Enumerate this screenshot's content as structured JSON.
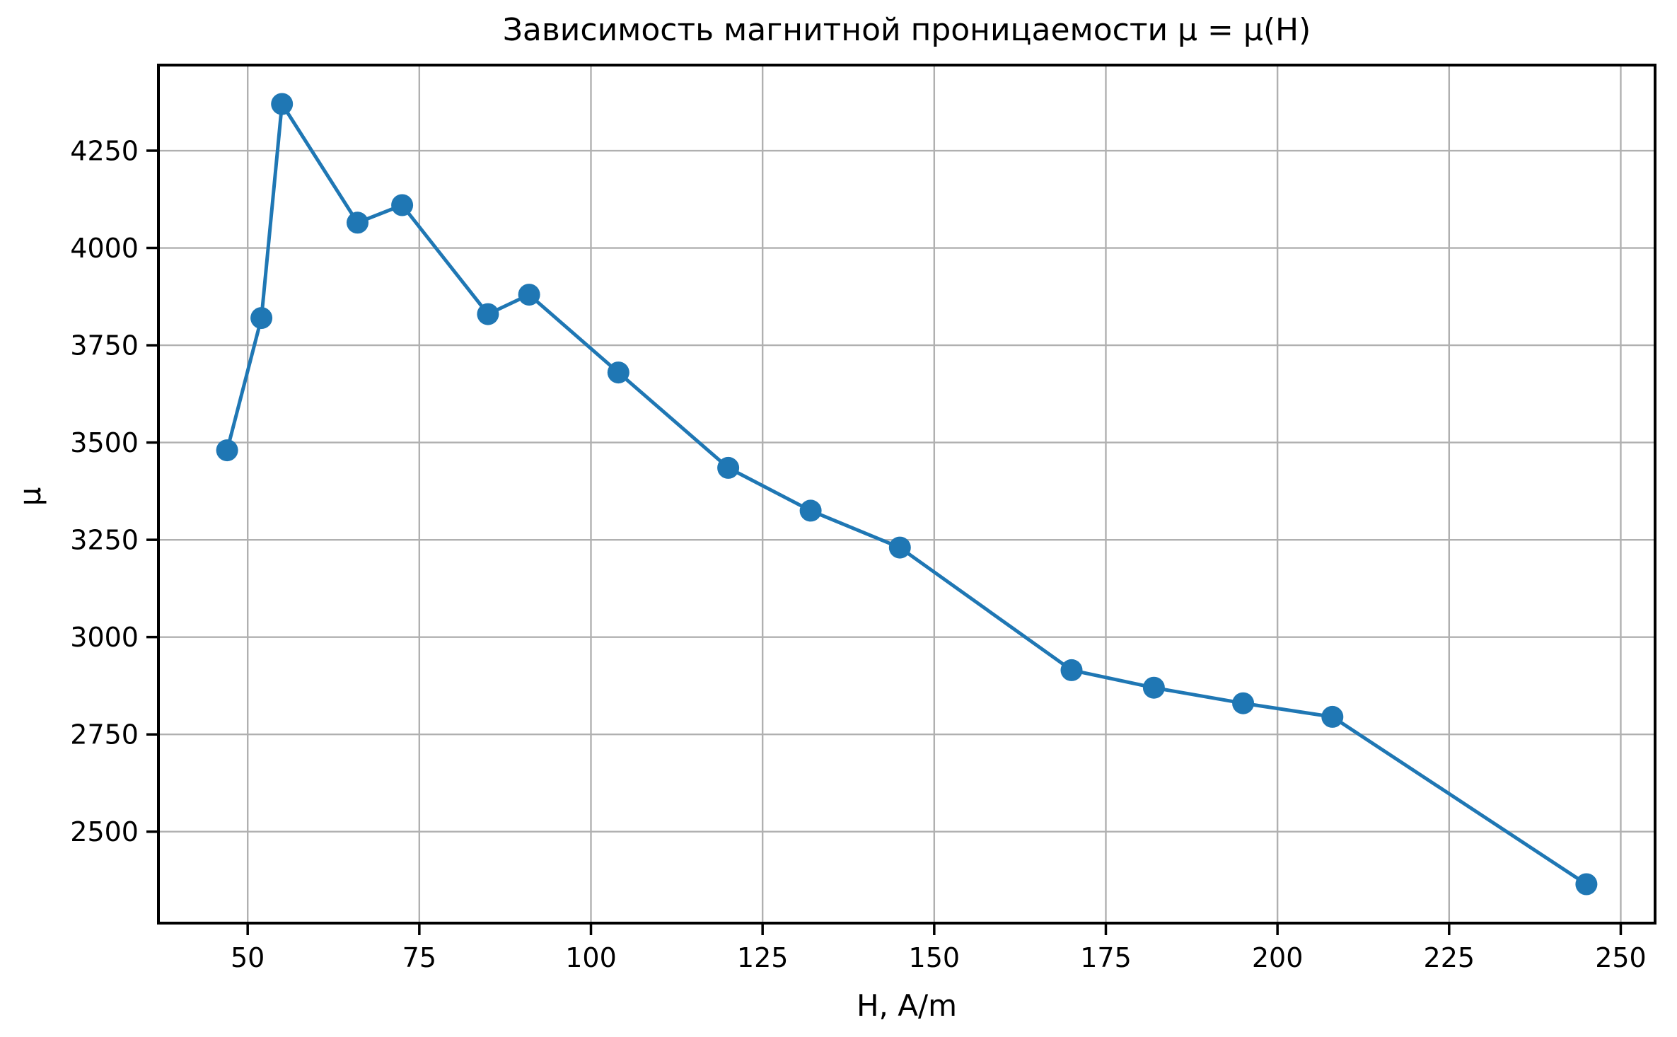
{
  "chart_data": {
    "type": "line",
    "title": "Зависимость магнитной проницаемости μ = μ(H)",
    "xlabel": "H, A/m",
    "ylabel": "μ",
    "grid": true,
    "legend": false,
    "xlim": [
      37,
      255
    ],
    "ylim": [
      2265,
      4470
    ],
    "x_ticks": [
      50,
      75,
      100,
      125,
      150,
      175,
      200,
      225,
      250
    ],
    "y_ticks": [
      2500,
      2750,
      3000,
      3250,
      3500,
      3750,
      4000,
      4250
    ],
    "series": [
      {
        "name": "μ(H)",
        "color": "#1f77b4",
        "marker": "circle",
        "x": [
          47,
          52,
          55,
          66,
          72.5,
          85,
          91,
          104,
          120,
          132,
          145,
          170,
          182,
          195,
          208,
          245
        ],
        "y": [
          3480,
          3820,
          4370,
          4065,
          4110,
          3830,
          3880,
          3680,
          3435,
          3325,
          3230,
          2915,
          2870,
          2830,
          2795,
          2365
        ]
      }
    ],
    "colors": {
      "line": "#1f77b4",
      "marker": "#1f77b4",
      "grid": "#b0b0b0",
      "axis": "#000000",
      "text": "#000000",
      "background": "#ffffff"
    }
  }
}
